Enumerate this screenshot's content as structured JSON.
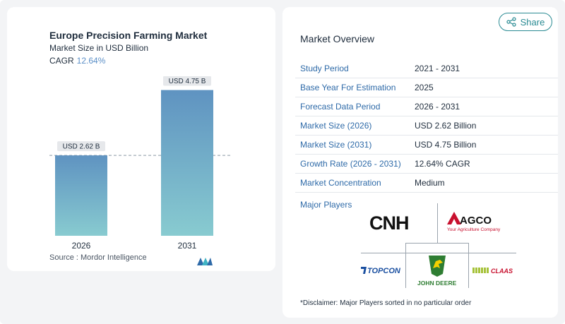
{
  "chart_data": {
    "type": "bar",
    "title": "Europe Precision Farming Market",
    "subtitle": "Market Size in USD Billion",
    "cagr_label": "CAGR",
    "cagr_value": "12.64%",
    "categories": [
      "2026",
      "2031"
    ],
    "values": [
      2.62,
      4.75
    ],
    "data_labels": [
      "USD 2.62 B",
      "USD 4.75 B"
    ],
    "ylim": [
      0,
      5.2
    ],
    "reference_line_value": 2.62,
    "colors": {
      "bar_top": "#5f93c1",
      "bar_bottom": "#88cbd0",
      "label_bg": "#e6e8eb"
    }
  },
  "source": "Source :  Mordor Intelligence",
  "share": {
    "label": "Share",
    "icon": "share-icon"
  },
  "overview": {
    "title": "Market Overview",
    "rows": [
      {
        "label": "Study Period",
        "value": "2021 - 2031"
      },
      {
        "label": "Base Year For Estimation",
        "value": "2025"
      },
      {
        "label": "Forecast Data Period",
        "value": "2026 - 2031"
      },
      {
        "label": "Market Size (2026)",
        "value": "USD 2.62 Billion"
      },
      {
        "label": "Market Size (2031)",
        "value": "USD 4.75 Billion"
      },
      {
        "label": "Growth Rate (2026 - 2031)",
        "value": "12.64% CAGR"
      },
      {
        "label": "Market Concentration",
        "value": "Medium"
      }
    ]
  },
  "players": {
    "label": "Major Players",
    "logos": [
      "CNH",
      "AGCO",
      "TOPCON",
      "JOHN DEERE",
      "CLAAS"
    ],
    "agco_tagline": "Your Agriculture Company"
  },
  "disclaimer": "*Disclaimer: Major Players sorted in no particular order"
}
